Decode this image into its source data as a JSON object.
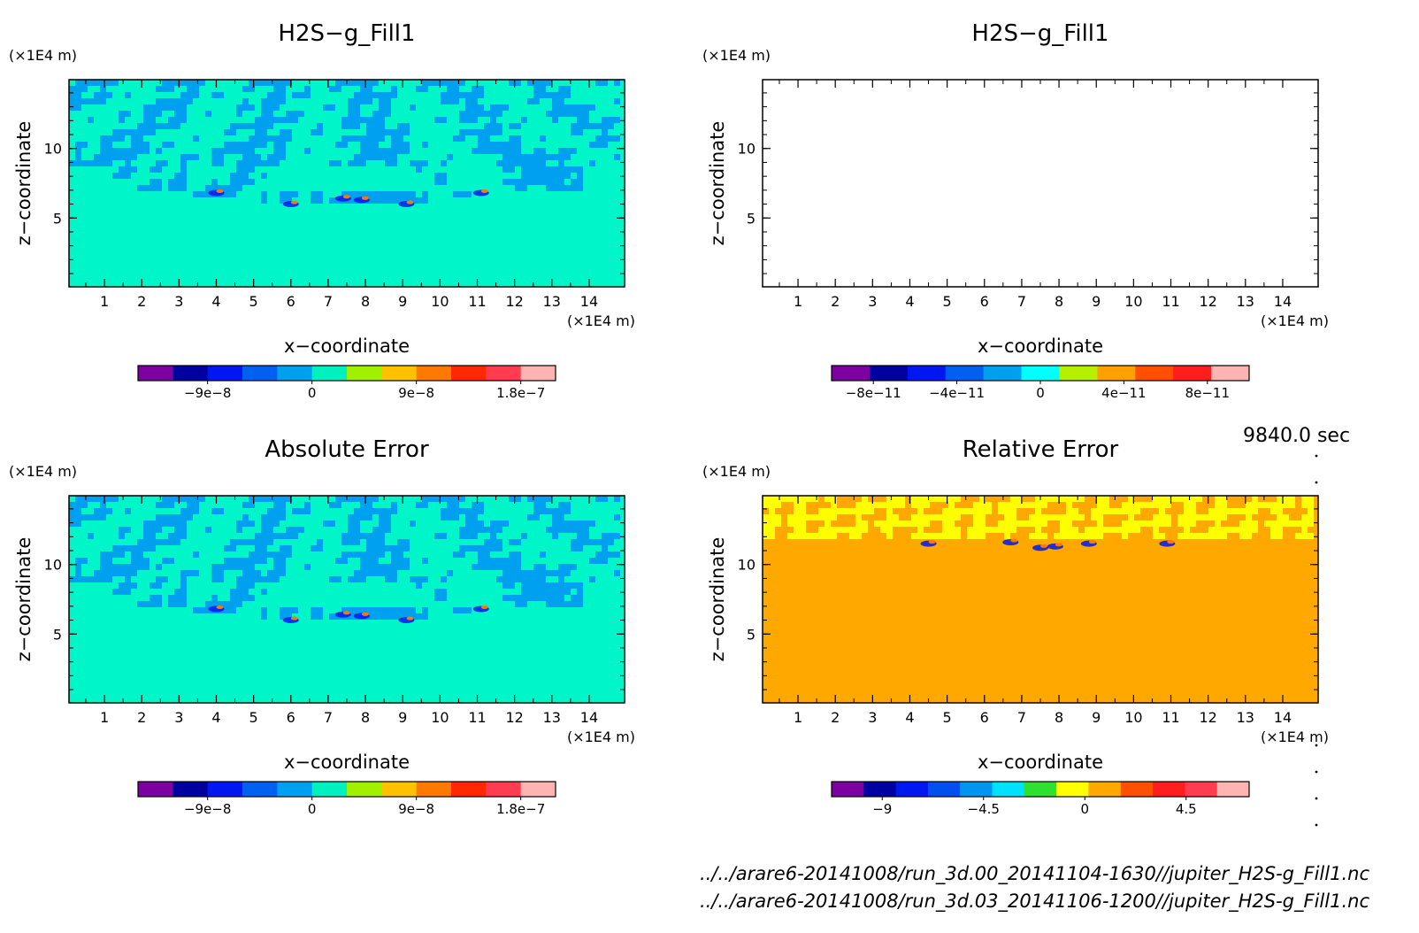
{
  "time_label": "9840.0 sec",
  "files": [
    "../../arare6-20141008/run_3d.00_20141104-1630//jupiter_H2S-g_Fill1.nc",
    "../../arare6-20141008/run_3d.03_20141106-1200//jupiter_H2S-g_Fill1.nc"
  ],
  "colors": {
    "palette12": [
      "#7f00a0",
      "#0000a0",
      "#0018f0",
      "#0060f0",
      "#00a0f0",
      "#00f0c0",
      "#a0f000",
      "#ffc000",
      "#ff7800",
      "#ff2800",
      "#ff3c50",
      "#ffb4b4"
    ],
    "palette12b": [
      "#7f00a0",
      "#0000a0",
      "#0018f0",
      "#0060f0",
      "#00a0f0",
      "#00ffff",
      "#b4f000",
      "#ffa000",
      "#ff5000",
      "#ff1e1e",
      "#ffb4b4"
    ],
    "palette12c": [
      "#7f00a0",
      "#0000a0",
      "#0018f0",
      "#0050f0",
      "#0096f0",
      "#00e0ff",
      "#30e030",
      "#ffff00",
      "#ffa800",
      "#ff5000",
      "#ff1e1e",
      "#ff3c50",
      "#ffb4b4"
    ],
    "field_bg": "#00f5c8",
    "field_band": "#00a0f0",
    "rel_bg": "#ffa800",
    "rel_band": "#ffff00"
  },
  "chart_data": [
    {
      "type": "heatmap",
      "title": "H2S−g_Fill1",
      "xlabel": "x−coordinate",
      "ylabel": "z−coordinate",
      "x_unit": "(×1E4 m)",
      "y_unit": "(×1E4 m)",
      "xlim": [
        0.05,
        14.95
      ],
      "ylim": [
        0.05,
        14.95
      ],
      "x_ticks": [
        "1",
        "2",
        "3",
        "4",
        "5",
        "6",
        "7",
        "8",
        "9",
        "10",
        "11",
        "12",
        "13",
        "14"
      ],
      "y_ticks": [
        "5",
        "10"
      ],
      "field": "wave",
      "colorbar": {
        "palette": "palette12",
        "range": [
          -1.5e-07,
          2.1e-07
        ],
        "tick_labels": [
          "−9e−8",
          "0",
          "9e−8",
          "1.8e−7"
        ],
        "tick_values": [
          -9e-08,
          0,
          9e-08,
          1.8e-07
        ]
      }
    },
    {
      "type": "heatmap",
      "title": "H2S−g_Fill1",
      "xlabel": "x−coordinate",
      "ylabel": "z−coordinate",
      "x_unit": "(×1E4 m)",
      "y_unit": "(×1E4 m)",
      "xlim": [
        0.05,
        14.95
      ],
      "ylim": [
        0.05,
        14.95
      ],
      "x_ticks": [
        "1",
        "2",
        "3",
        "4",
        "5",
        "6",
        "7",
        "8",
        "9",
        "10",
        "11",
        "12",
        "13",
        "14"
      ],
      "y_ticks": [
        "5",
        "10"
      ],
      "field": "empty",
      "colorbar": {
        "palette": "palette12b",
        "range": [
          -1e-10,
          1e-10
        ],
        "tick_labels": [
          "−8e−11",
          "−4e−11",
          "0",
          "4e−11",
          "8e−11"
        ],
        "tick_values": [
          -8e-11,
          -4e-11,
          0,
          4e-11,
          8e-11
        ]
      }
    },
    {
      "type": "heatmap",
      "title": "Absolute Error",
      "xlabel": "x−coordinate",
      "ylabel": "z−coordinate",
      "x_unit": "(×1E4 m)",
      "y_unit": "(×1E4 m)",
      "xlim": [
        0.05,
        14.95
      ],
      "ylim": [
        0.05,
        14.95
      ],
      "x_ticks": [
        "1",
        "2",
        "3",
        "4",
        "5",
        "6",
        "7",
        "8",
        "9",
        "10",
        "11",
        "12",
        "13",
        "14"
      ],
      "y_ticks": [
        "5",
        "10"
      ],
      "field": "wave",
      "colorbar": {
        "palette": "palette12",
        "range": [
          -1.5e-07,
          2.1e-07
        ],
        "tick_labels": [
          "−9e−8",
          "0",
          "9e−8",
          "1.8e−7"
        ],
        "tick_values": [
          -9e-08,
          0,
          9e-08,
          1.8e-07
        ]
      }
    },
    {
      "type": "heatmap",
      "title": "Relative Error",
      "xlabel": "x−coordinate",
      "ylabel": "z−coordinate",
      "x_unit": "(×1E4 m)",
      "y_unit": "(×1E4 m)",
      "xlim": [
        0.05,
        14.95
      ],
      "ylim": [
        0.05,
        14.95
      ],
      "x_ticks": [
        "1",
        "2",
        "3",
        "4",
        "5",
        "6",
        "7",
        "8",
        "9",
        "10",
        "11",
        "12",
        "13",
        "14"
      ],
      "y_ticks": [
        "5",
        "10"
      ],
      "field": "relerr",
      "colorbar": {
        "palette": "palette12c",
        "range": [
          -11.25,
          7.3
        ],
        "tick_labels": [
          "−9",
          "−4.5",
          "0",
          "4.5"
        ],
        "tick_values": [
          -9,
          -4.5,
          0,
          4.5
        ]
      }
    }
  ]
}
